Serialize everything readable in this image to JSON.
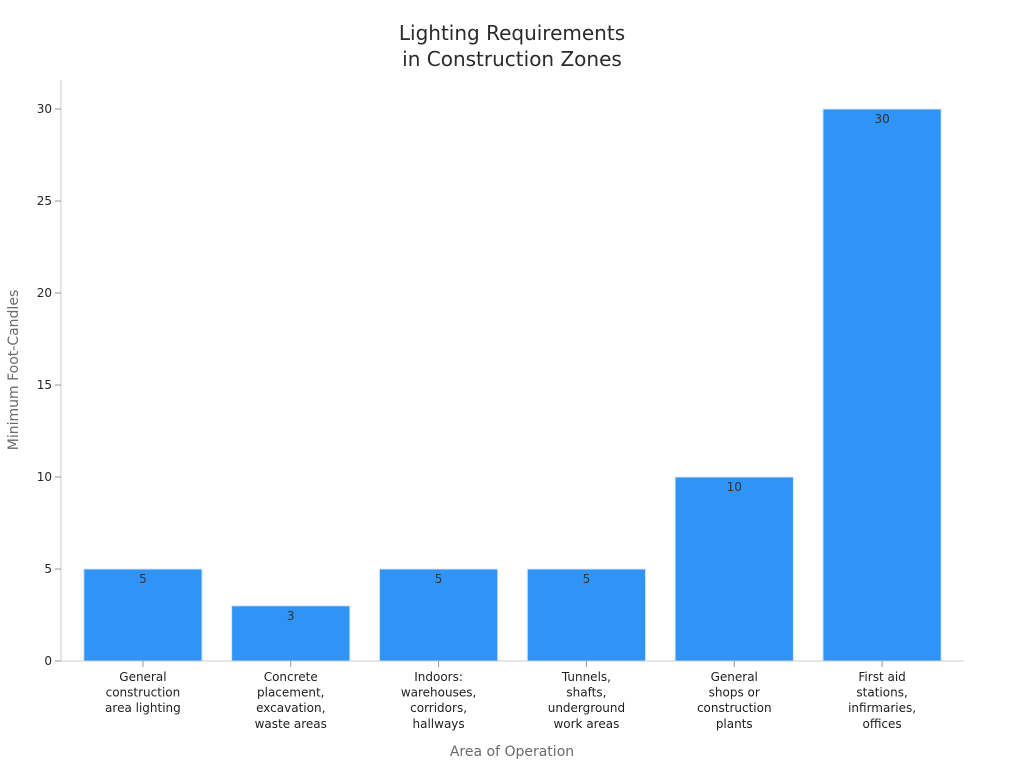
{
  "chart_data": {
    "type": "bar",
    "title": [
      "Lighting Requirements",
      "in Construction Zones"
    ],
    "xlabel": "Area of Operation",
    "ylabel": "Minimum Foot-Candles",
    "categories": [
      [
        "General",
        "construction",
        "area lighting"
      ],
      [
        "Concrete",
        "placement,",
        "excavation,",
        "waste areas"
      ],
      [
        "Indoors:",
        "warehouses,",
        "corridors,",
        "hallways"
      ],
      [
        "Tunnels,",
        "shafts,",
        "underground",
        "work areas"
      ],
      [
        "General",
        "shops or",
        "construction",
        "plants"
      ],
      [
        "First aid",
        "stations,",
        "infirmaries,",
        "offices"
      ]
    ],
    "values": [
      5,
      3,
      5,
      5,
      10,
      30
    ],
    "data_labels": [
      "5",
      "3",
      "5",
      "5",
      "10",
      "30"
    ],
    "ylim": [
      0,
      30
    ],
    "yticks": [
      0,
      5,
      10,
      15,
      20,
      25,
      30
    ],
    "bar_color": "#3094f7",
    "grid": false,
    "legend": "none"
  }
}
